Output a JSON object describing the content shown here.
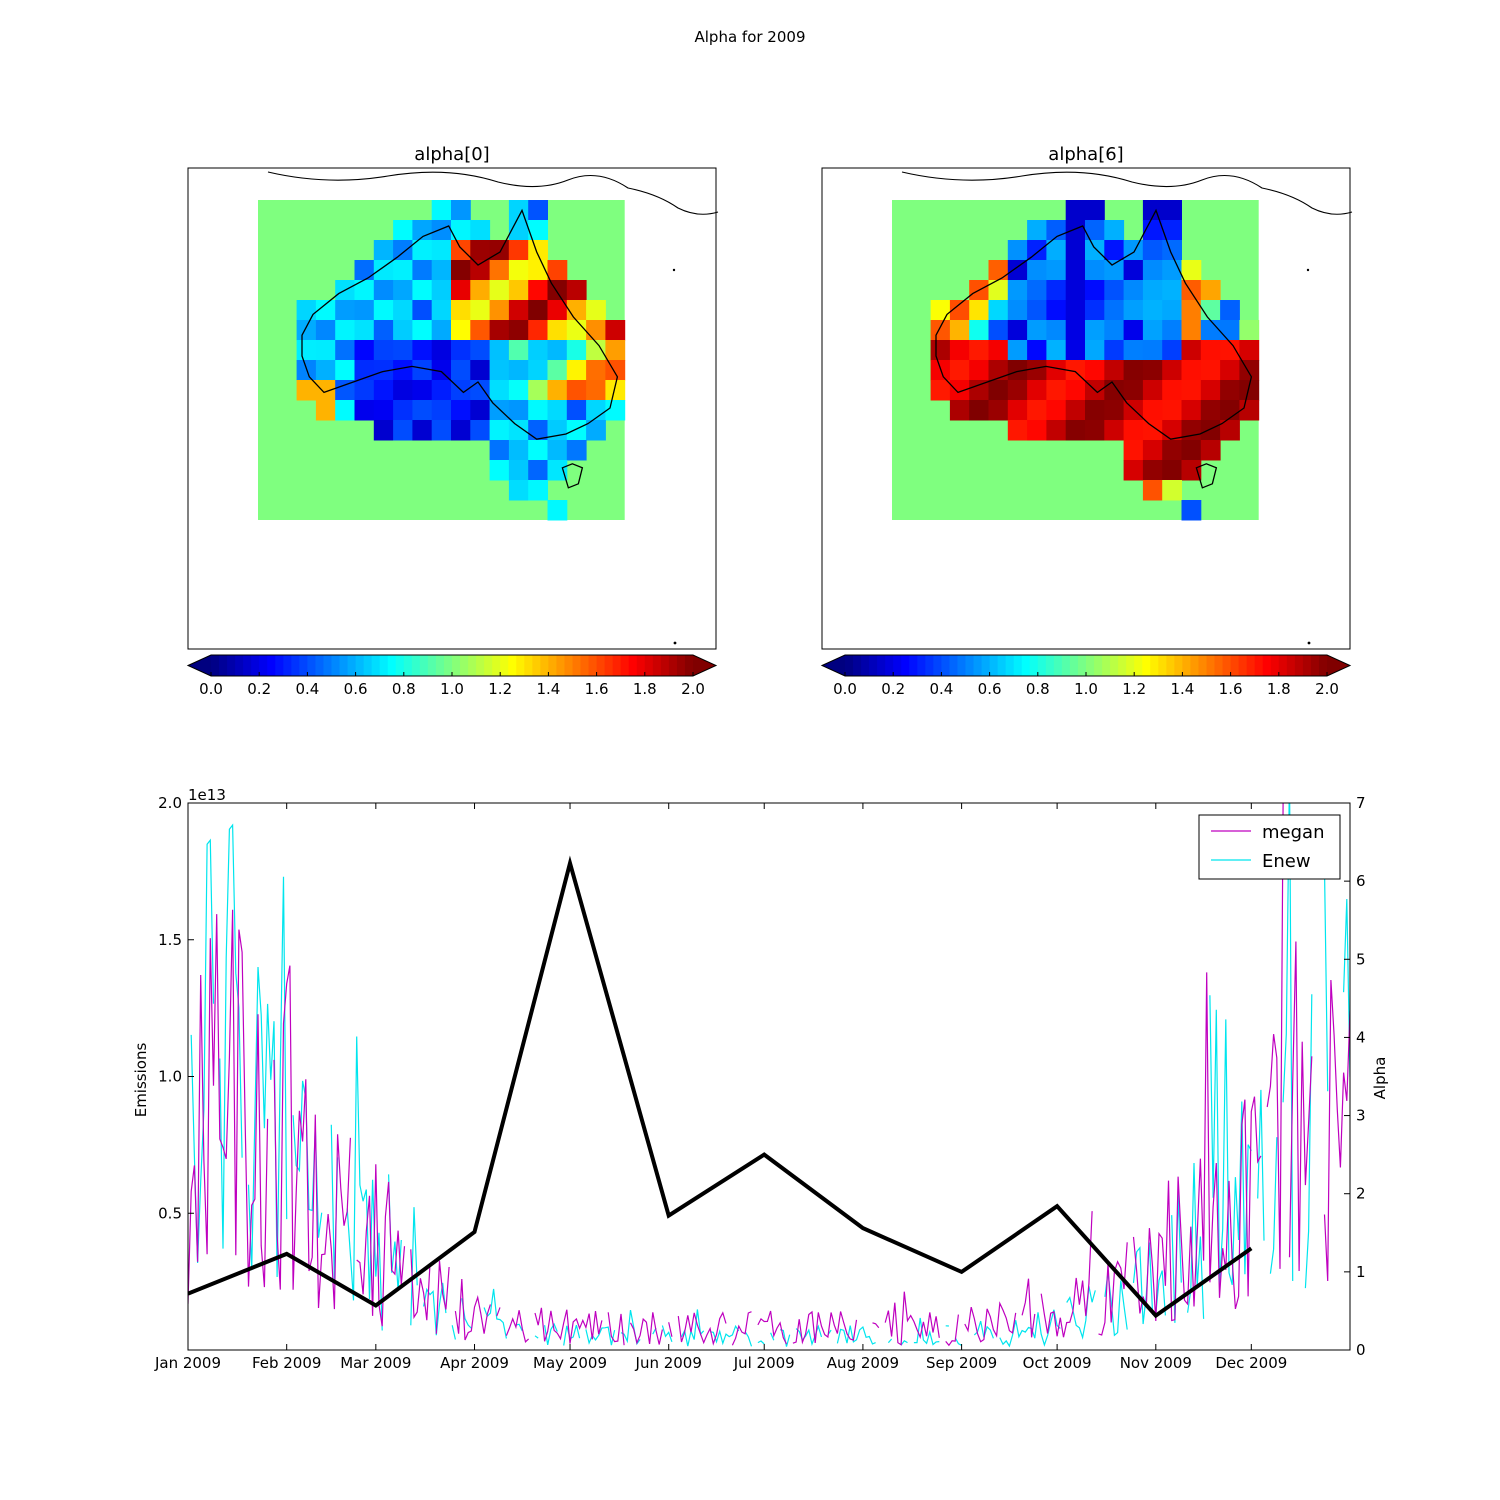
{
  "suptitle": "Alpha for 2009",
  "colors": {
    "megan": "#bf00bf",
    "enew": "#00e5ee",
    "alpha_line": "#000000",
    "map_ocean": "#7fff7f"
  },
  "chart_data": [
    {
      "type": "heatmap",
      "title": "alpha[0]",
      "colormap": "jet",
      "vmin": 0.0,
      "vmax": 2.0,
      "colorbar_ticks": [
        "0.0",
        "0.2",
        "0.4",
        "0.6",
        "0.8",
        "1.0",
        "1.2",
        "1.4",
        "1.6",
        "1.8",
        "2.0"
      ],
      "grid": [
        "---------a-----------------",
        "--------uac-----------------",
        "-------uwbc-----a-",
        "------jbbb-a-----h-",
        "--------------adddfd---",
        "-------gggg-hc-adecj-",
        "--ffhfggmhfhkcifckoo---",
        "---hhffhhhhhffmiooolll--e",
        "--hhhhmhhkhhjhhbfllhhllml",
        "----hhhhh-bbhhmbfhhlhhll",
        "-fhhhhhjbb-bbbfmmmkgffffu",
        "----ggggjbb-bbbbbggjffrl",
        "------g-hhhbbhhhhffhf",
        "----------------hhhhhff",
        "----------------hhkkff",
        "-----------------------",
        "-----------------------a"
      ],
      "grid_note": "see rows[]"
    },
    {
      "type": "heatmap",
      "title": "alpha[6]",
      "colormap": "jet",
      "vmin": 0.0,
      "vmax": 2.0,
      "colorbar_ticks": [
        "0.0",
        "0.2",
        "0.4",
        "0.6",
        "0.8",
        "1.0",
        "1.2",
        "1.4",
        "1.6",
        "1.8",
        "2.0"
      ]
    },
    {
      "type": "line",
      "xlabel": "",
      "ylabel": "Emissions",
      "ylabel_right": "Alpha",
      "y_offset_text": "1e13",
      "ylim": [
        0,
        2.0
      ],
      "ylim_right": [
        0,
        7
      ],
      "yticks": [
        "0.5",
        "1.0",
        "1.5",
        "2.0"
      ],
      "yticks_right": [
        "0",
        "1",
        "2",
        "3",
        "4",
        "5",
        "6",
        "7"
      ],
      "xlim_days": [
        0,
        365
      ],
      "xticks": [
        {
          "label": "Jan 2009",
          "day": 0
        },
        {
          "label": "Feb 2009",
          "day": 31
        },
        {
          "label": "Mar 2009",
          "day": 59
        },
        {
          "label": "Apr 2009",
          "day": 90
        },
        {
          "label": "May 2009",
          "day": 120
        },
        {
          "label": "Jun 2009",
          "day": 151
        },
        {
          "label": "Jul 2009",
          "day": 181
        },
        {
          "label": "Aug 2009",
          "day": 212
        },
        {
          "label": "Sep 2009",
          "day": 243
        },
        {
          "label": "Oct 2009",
          "day": 273
        },
        {
          "label": "Nov 2009",
          "day": 304
        },
        {
          "label": "Dec 2009",
          "day": 334
        }
      ],
      "legend": [
        "megan",
        "Enew"
      ],
      "legend_loc": "top-right",
      "alpha_monthly": {
        "days": [
          0,
          31,
          59,
          90,
          120,
          151,
          181,
          212,
          243,
          273,
          304,
          334
        ],
        "values": [
          0.72,
          1.23,
          0.57,
          1.51,
          6.23,
          1.72,
          2.5,
          1.56,
          1.0,
          1.84,
          0.44,
          1.3
        ]
      }
    }
  ]
}
